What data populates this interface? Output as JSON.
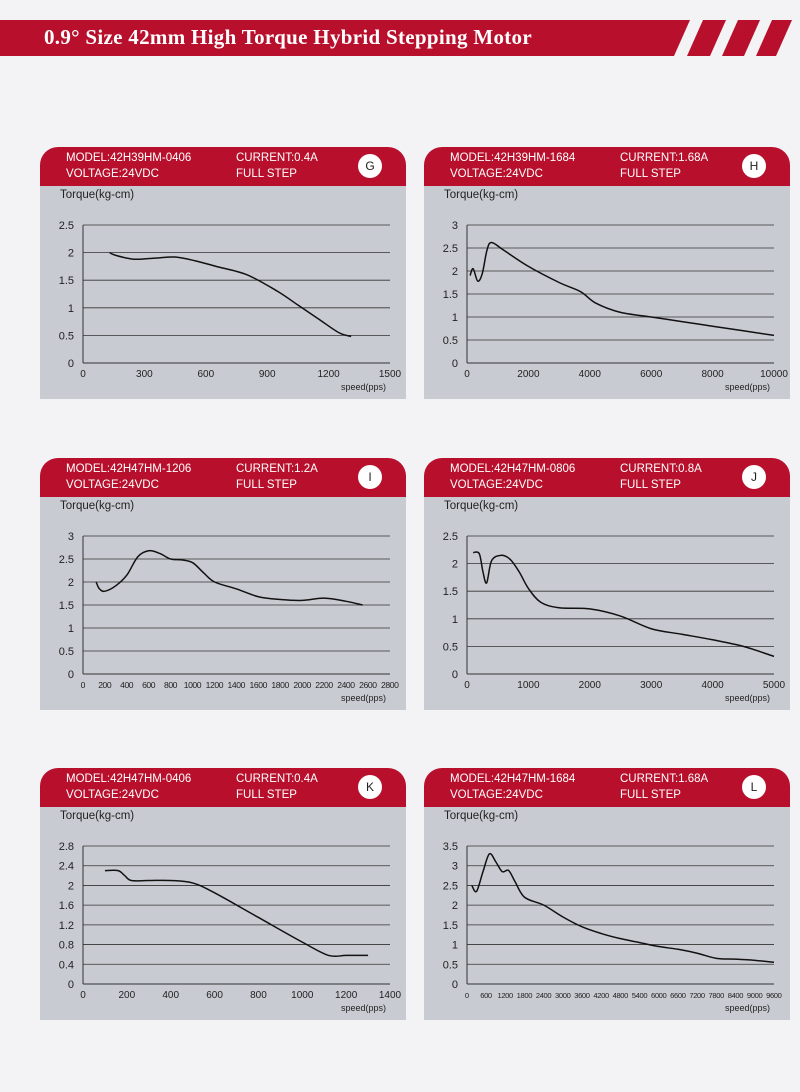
{
  "page_title": "0.9° Size 42mm High Torque Hybrid Stepping Motor",
  "colors": {
    "header_red": "#b8102c",
    "panel_gray": "#c9cbd2",
    "line": "#111111"
  },
  "chart_data": [
    {
      "type": "line",
      "model": "MODEL:42H39HM-0406",
      "current": "CURRENT:0.4A",
      "voltage": "VOLTAGE:24VDC",
      "step": "FULL STEP",
      "letter": "G",
      "ylabel": "Torque(kg-cm)",
      "xlabel": "speed(pps)",
      "xlim": [
        0,
        1500
      ],
      "ylim": [
        0,
        2.5
      ],
      "x_ticks": [
        0,
        300,
        600,
        900,
        1200,
        1500
      ],
      "y_ticks": [
        0,
        0.5,
        1,
        1.5,
        2,
        2.5
      ],
      "grid": "horizontal",
      "series": [
        {
          "x": [
            130,
            160,
            250,
            350,
            450,
            550,
            650,
            800,
            950,
            1050,
            1150,
            1250,
            1310
          ],
          "y": [
            2.0,
            1.95,
            1.88,
            1.9,
            1.92,
            1.85,
            1.75,
            1.6,
            1.3,
            1.05,
            0.8,
            0.55,
            0.48
          ]
        }
      ]
    },
    {
      "type": "line",
      "model": "MODEL:42H39HM-1684",
      "current": "CURRENT:1.68A",
      "voltage": "VOLTAGE:24VDC",
      "step": "FULL STEP",
      "letter": "H",
      "ylabel": "Torque(kg-cm)",
      "xlabel": "speed(pps)",
      "xlim": [
        0,
        10000
      ],
      "ylim": [
        0,
        3
      ],
      "x_ticks": [
        0,
        2000,
        4000,
        6000,
        8000,
        10000
      ],
      "y_ticks": [
        0,
        0.5,
        1,
        1.5,
        2,
        2.5,
        3
      ],
      "grid": "horizontal",
      "series": [
        {
          "x": [
            100,
            200,
            350,
            500,
            650,
            800,
            1200,
            2000,
            3000,
            3700,
            4200,
            5000,
            6000,
            7000,
            8000,
            9000,
            10000
          ],
          "y": [
            1.9,
            2.05,
            1.78,
            1.95,
            2.45,
            2.62,
            2.45,
            2.1,
            1.75,
            1.55,
            1.3,
            1.1,
            1.0,
            0.9,
            0.8,
            0.7,
            0.6
          ]
        }
      ]
    },
    {
      "type": "line",
      "model": "MODEL:42H47HM-1206",
      "current": "CURRENT:1.2A",
      "voltage": "VOLTAGE:24VDC",
      "step": "FULL STEP",
      "letter": "I",
      "ylabel": "Torque(kg-cm)",
      "xlabel": "speed(pps)",
      "xlim": [
        0,
        2800
      ],
      "ylim": [
        0,
        3
      ],
      "x_ticks": [
        0,
        200,
        400,
        600,
        800,
        1000,
        1200,
        1400,
        1600,
        1800,
        2000,
        2200,
        2400,
        2600,
        2800
      ],
      "y_ticks": [
        0,
        0.5,
        1,
        1.5,
        2,
        2.5,
        3
      ],
      "grid": "horizontal",
      "series": [
        {
          "x": [
            120,
            150,
            200,
            300,
            400,
            500,
            600,
            700,
            800,
            900,
            1000,
            1100,
            1200,
            1400,
            1600,
            1800,
            2000,
            2200,
            2400,
            2550
          ],
          "y": [
            2.0,
            1.85,
            1.8,
            1.92,
            2.15,
            2.55,
            2.68,
            2.62,
            2.5,
            2.48,
            2.42,
            2.2,
            2.0,
            1.85,
            1.68,
            1.62,
            1.6,
            1.65,
            1.58,
            1.5
          ]
        }
      ]
    },
    {
      "type": "line",
      "model": "MODEL:42H47HM-0806",
      "current": "CURRENT:0.8A",
      "voltage": "VOLTAGE:24VDC",
      "step": "FULL STEP",
      "letter": "J",
      "ylabel": "Torque(kg-cm)",
      "xlabel": "speed(pps)",
      "xlim": [
        0,
        5000
      ],
      "ylim": [
        0,
        2.5
      ],
      "x_ticks": [
        0,
        1000,
        2000,
        3000,
        4000,
        5000
      ],
      "y_ticks": [
        0,
        0.5,
        1,
        1.5,
        2,
        2.5
      ],
      "grid": "horizontal",
      "series": [
        {
          "x": [
            100,
            200,
            260,
            320,
            400,
            550,
            700,
            850,
            1000,
            1200,
            1500,
            2000,
            2500,
            3000,
            3500,
            4000,
            4500,
            5000
          ],
          "y": [
            2.2,
            2.18,
            1.85,
            1.65,
            2.05,
            2.15,
            2.08,
            1.85,
            1.55,
            1.3,
            1.2,
            1.18,
            1.05,
            0.82,
            0.72,
            0.62,
            0.5,
            0.32
          ]
        }
      ]
    },
    {
      "type": "line",
      "model": "MODEL:42H47HM-0406",
      "current": "CURRENT:0.4A",
      "voltage": "VOLTAGE:24VDC",
      "step": "FULL STEP",
      "letter": "K",
      "ylabel": "Torque(kg-cm)",
      "xlabel": "speed(pps)",
      "xlim": [
        0,
        1400
      ],
      "ylim": [
        0,
        2.8
      ],
      "x_ticks": [
        0,
        200,
        400,
        600,
        800,
        1000,
        1200,
        1400
      ],
      "y_ticks": [
        0,
        0.4,
        0.8,
        1.2,
        1.6,
        2,
        2.4,
        2.8
      ],
      "grid": "horizontal",
      "series": [
        {
          "x": [
            100,
            160,
            190,
            220,
            300,
            400,
            500,
            600,
            800,
            1000,
            1120,
            1200,
            1300
          ],
          "y": [
            2.3,
            2.3,
            2.2,
            2.1,
            2.1,
            2.1,
            2.05,
            1.85,
            1.35,
            0.85,
            0.58,
            0.58,
            0.58
          ]
        }
      ]
    },
    {
      "type": "line",
      "model": "MODEL:42H47HM-1684",
      "current": "CURRENT:1.68A",
      "voltage": "VOLTAGE:24VDC",
      "step": "FULL STEP",
      "letter": "L",
      "ylabel": "Torque(kg-cm)",
      "xlabel": "speed(pps)",
      "xlim": [
        0,
        9600
      ],
      "ylim": [
        0,
        3.5
      ],
      "x_ticks": [
        0,
        600,
        1200,
        1800,
        2400,
        3000,
        3600,
        4200,
        4800,
        5400,
        6000,
        6600,
        7200,
        7800,
        8400,
        9000,
        9600
      ],
      "y_ticks": [
        0,
        0.5,
        1,
        1.5,
        2,
        2.5,
        3,
        3.5
      ],
      "grid": "horizontal",
      "series": [
        {
          "x": [
            150,
            300,
            500,
            700,
            900,
            1100,
            1300,
            1500,
            1800,
            2400,
            3000,
            3600,
            4200,
            4800,
            5400,
            6000,
            6600,
            7200,
            7800,
            8400,
            9000,
            9600
          ],
          "y": [
            2.5,
            2.35,
            2.85,
            3.3,
            3.1,
            2.85,
            2.88,
            2.6,
            2.2,
            2.0,
            1.7,
            1.45,
            1.28,
            1.15,
            1.05,
            0.95,
            0.88,
            0.78,
            0.65,
            0.63,
            0.6,
            0.55
          ]
        }
      ]
    }
  ]
}
